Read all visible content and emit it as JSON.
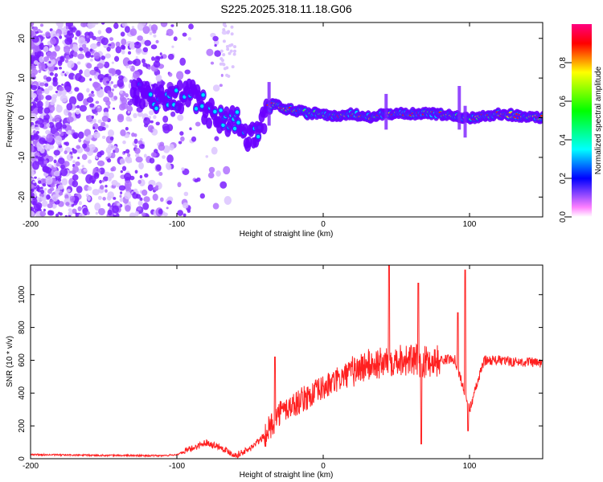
{
  "title": "S225.2025.318.11.18.G06",
  "chart_data": [
    {
      "type": "heatmap",
      "xlabel": "Height of straight line (km)",
      "ylabel": "Frequency (Hz)",
      "xlim": [
        -200,
        150
      ],
      "ylim": [
        -25,
        24
      ],
      "xticks": [
        -200,
        -100,
        0,
        100
      ],
      "xtick_labels": [
        "-200",
        "-100",
        "0",
        "100"
      ],
      "yticks": [
        -20,
        -10,
        0,
        10,
        20
      ],
      "ytick_labels": [
        "-20",
        "-10",
        "0",
        "10",
        "20"
      ],
      "colorbar": {
        "label": "Normalized spectral amplitude",
        "range": [
          0,
          1
        ],
        "ticks": [
          0.0,
          0.2,
          0.4,
          0.6,
          0.8
        ],
        "tick_labels": [
          "0.0",
          "0.2",
          "0.4",
          "0.6",
          "0.8"
        ],
        "colors": [
          "#ff00ff",
          "#0000ff",
          "#00ffff",
          "#00ff00",
          "#ffff00",
          "#ff0000"
        ]
      },
      "trace": {
        "x": [
          -130,
          -115,
          -100,
          -90,
          -85,
          -80,
          -75,
          -70,
          -65,
          -60,
          -55,
          -50,
          -45,
          -40,
          -35,
          -30,
          -25,
          -20,
          -10,
          0,
          10,
          20,
          30,
          40,
          60,
          80,
          100,
          120,
          150
        ],
        "y": [
          6,
          5,
          5,
          6,
          4,
          2,
          1,
          0,
          -1,
          -1,
          -3,
          -5,
          -3,
          0,
          4,
          3,
          2,
          2,
          1,
          1,
          0,
          1,
          0,
          1,
          1,
          1,
          0,
          1,
          0
        ]
      }
    },
    {
      "type": "line",
      "xlabel": "Height of straight line (km)",
      "ylabel": "SNR (10 * v/v)",
      "xlim": [
        -200,
        150
      ],
      "ylim": [
        0,
        1180
      ],
      "xticks": [
        -200,
        -100,
        0,
        100
      ],
      "xtick_labels": [
        "-200",
        "-100",
        "0",
        "100"
      ],
      "yticks": [
        0,
        200,
        400,
        600,
        800,
        1000
      ],
      "ytick_labels": [
        "0",
        "200",
        "400",
        "600",
        "800",
        "1000"
      ],
      "color": "#ff2020",
      "x": [
        -200,
        -150,
        -110,
        -100,
        -90,
        -80,
        -70,
        -60,
        -50,
        -40,
        -30,
        -20,
        -10,
        0,
        10,
        20,
        30,
        40,
        50,
        60,
        70,
        80,
        90,
        100,
        110,
        120,
        130,
        140,
        150
      ],
      "y": [
        25,
        20,
        18,
        25,
        60,
        100,
        70,
        20,
        60,
        140,
        280,
        330,
        380,
        430,
        480,
        530,
        570,
        580,
        610,
        600,
        590,
        600,
        610,
        300,
        600,
        600,
        590,
        590,
        580
      ],
      "spikes": [
        {
          "x": -33,
          "y": 620
        },
        {
          "x": 45,
          "y": 1180
        },
        {
          "x": 65,
          "y": 1070
        },
        {
          "x": 67,
          "y": 90
        },
        {
          "x": 92,
          "y": 890
        },
        {
          "x": 97,
          "y": 1150
        },
        {
          "x": 99,
          "y": 170
        }
      ]
    }
  ]
}
